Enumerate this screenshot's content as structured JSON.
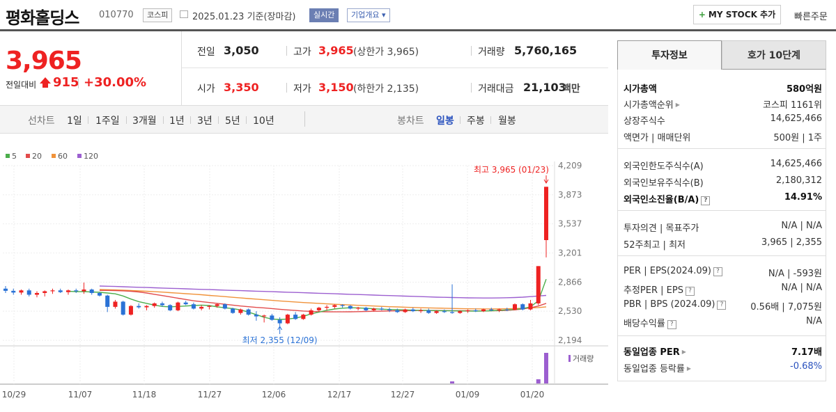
{
  "header": {
    "title": "평화홀딩스",
    "code": "010770",
    "market": "코스피",
    "date": "2025.01.23  기준(장마감)",
    "live": "실시간",
    "company_info": "기업개요 ▾",
    "mystock": "MY STOCK 추가",
    "mystock_plus": "+",
    "quick_order": "빠른주문"
  },
  "price": {
    "current": "3,965",
    "change_label": "전일대비",
    "change": "915",
    "change_pct": "+30.00%"
  },
  "quotes": {
    "prev_label": "전일",
    "prev": "3,050",
    "high_label": "고가",
    "high": "3,965",
    "high_sub": "(상한가 3,965)",
    "volume_label": "거래량",
    "volume": "5,760,165",
    "open_label": "시가",
    "open": "3,350",
    "low_label": "저가",
    "low": "3,150",
    "low_sub": "(하한가 2,135)",
    "amount_label": "거래대금",
    "amount": "21,103",
    "amount_unit": "백만"
  },
  "chart_nav": {
    "line_label": "선차트",
    "line_periods": [
      "1일",
      "1주일",
      "3개월",
      "1년",
      "3년",
      "5년",
      "10년"
    ],
    "candle_label": "봉차트",
    "candle_periods": [
      "일봉",
      "주봉",
      "월봉"
    ],
    "candle_active": "일봉"
  },
  "chart_data": {
    "type": "candlestick",
    "legend": [
      {
        "name": "5",
        "color": "#4cae4c"
      },
      {
        "name": "20",
        "color": "#e24b4b"
      },
      {
        "name": "60",
        "color": "#f0923a"
      },
      {
        "name": "120",
        "color": "#9c5fd0"
      }
    ],
    "y_ticks": [
      "4,209",
      "3,873",
      "3,537",
      "3,201",
      "2,866",
      "2,530",
      "2,194"
    ],
    "ylim": [
      2194,
      4209
    ],
    "x_ticks": [
      "10/29",
      "11/07",
      "11/18",
      "11/27",
      "12/06",
      "12/17",
      "12/27",
      "01/09",
      "01/20"
    ],
    "high_annotation": "최고 3,965 (01/23)",
    "low_annotation": "최저 2,355 (12/09)",
    "volume_label": "거래량",
    "up_color": "#e22",
    "down_color": "#2a72d6",
    "candles": [
      [
        2790,
        2820,
        2740,
        2765
      ],
      [
        2765,
        2790,
        2720,
        2745
      ],
      [
        2745,
        2780,
        2720,
        2770
      ],
      [
        2770,
        2790,
        2700,
        2720
      ],
      [
        2720,
        2760,
        2690,
        2740
      ],
      [
        2740,
        2770,
        2700,
        2760
      ],
      [
        2760,
        2790,
        2730,
        2770
      ],
      [
        2770,
        2790,
        2740,
        2750
      ],
      [
        2750,
        2780,
        2720,
        2770
      ],
      [
        2770,
        2790,
        2740,
        2760
      ],
      [
        2760,
        2860,
        2730,
        2780
      ],
      [
        2780,
        2790,
        2720,
        2740
      ],
      [
        2740,
        2750,
        2700,
        2710
      ],
      [
        2710,
        2720,
        2520,
        2580
      ],
      [
        2580,
        2660,
        2560,
        2640
      ],
      [
        2640,
        2650,
        2480,
        2490
      ],
      [
        2490,
        2600,
        2480,
        2590
      ],
      [
        2590,
        2620,
        2560,
        2575
      ],
      [
        2575,
        2600,
        2540,
        2590
      ],
      [
        2590,
        2630,
        2570,
        2620
      ],
      [
        2620,
        2640,
        2580,
        2600
      ],
      [
        2600,
        2610,
        2530,
        2540
      ],
      [
        2540,
        2640,
        2530,
        2630
      ],
      [
        2630,
        2650,
        2600,
        2610
      ],
      [
        2610,
        2630,
        2550,
        2560
      ],
      [
        2560,
        2600,
        2540,
        2580
      ],
      [
        2580,
        2600,
        2550,
        2590
      ],
      [
        2590,
        2620,
        2570,
        2610
      ],
      [
        2610,
        2620,
        2550,
        2560
      ],
      [
        2560,
        2570,
        2500,
        2510
      ],
      [
        2510,
        2560,
        2490,
        2550
      ],
      [
        2550,
        2560,
        2480,
        2490
      ],
      [
        2490,
        2530,
        2420,
        2470
      ],
      [
        2470,
        2490,
        2400,
        2480
      ],
      [
        2480,
        2500,
        2420,
        2430
      ],
      [
        2430,
        2460,
        2360,
        2390
      ],
      [
        2390,
        2500,
        2380,
        2490
      ],
      [
        2490,
        2520,
        2430,
        2440
      ],
      [
        2440,
        2500,
        2430,
        2490
      ],
      [
        2490,
        2560,
        2480,
        2540
      ],
      [
        2540,
        2580,
        2520,
        2570
      ],
      [
        2570,
        2600,
        2540,
        2580
      ],
      [
        2580,
        2610,
        2560,
        2600
      ],
      [
        2600,
        2610,
        2570,
        2590
      ],
      [
        2590,
        2600,
        2550,
        2560
      ],
      [
        2560,
        2580,
        2540,
        2570
      ],
      [
        2570,
        2580,
        2530,
        2540
      ],
      [
        2540,
        2570,
        2530,
        2560
      ],
      [
        2560,
        2580,
        2540,
        2550
      ],
      [
        2550,
        2570,
        2520,
        2540
      ],
      [
        2540,
        2560,
        2510,
        2520
      ],
      [
        2520,
        2560,
        2510,
        2550
      ],
      [
        2550,
        2570,
        2520,
        2530
      ],
      [
        2530,
        2560,
        2510,
        2540
      ],
      [
        2540,
        2560,
        2500,
        2510
      ],
      [
        2510,
        2540,
        2500,
        2530
      ],
      [
        2530,
        2550,
        2510,
        2520
      ],
      [
        2520,
        2840,
        2500,
        2510
      ],
      [
        2510,
        2540,
        2500,
        2530
      ],
      [
        2530,
        2550,
        2510,
        2540
      ],
      [
        2540,
        2560,
        2520,
        2530
      ],
      [
        2530,
        2560,
        2520,
        2550
      ],
      [
        2550,
        2570,
        2530,
        2540
      ],
      [
        2540,
        2560,
        2520,
        2550
      ],
      [
        2550,
        2570,
        2530,
        2545
      ],
      [
        2545,
        2620,
        2540,
        2610
      ],
      [
        2610,
        2620,
        2540,
        2550
      ],
      [
        2550,
        2660,
        2540,
        2620
      ],
      [
        2620,
        3050,
        2600,
        3050
      ],
      [
        3350,
        3965,
        3150,
        3965
      ]
    ],
    "ma5": [
      2760,
      2755,
      2755,
      2752,
      2748,
      2740,
      2730,
      2705,
      2670,
      2640,
      2620,
      2600,
      2585,
      2580,
      2585,
      2590,
      2595,
      2600,
      2595,
      2580,
      2570,
      2560,
      2545,
      2520,
      2490,
      2460,
      2440,
      2435,
      2440,
      2450,
      2470,
      2500,
      2520,
      2540,
      2555,
      2565,
      2570,
      2568,
      2563,
      2558,
      2553,
      2550,
      2548,
      2545,
      2542,
      2540,
      2538,
      2536,
      2535,
      2534,
      2533,
      2532,
      2531,
      2532,
      2535,
      2540,
      2545,
      2550,
      2560,
      2580,
      2650,
      2900
    ],
    "ma20": [
      2770,
      2770,
      2768,
      2765,
      2760,
      2752,
      2740,
      2725,
      2710,
      2695,
      2680,
      2665,
      2650,
      2640,
      2630,
      2620,
      2610,
      2600,
      2590,
      2582,
      2574,
      2568,
      2560,
      2552,
      2545,
      2538,
      2532,
      2528,
      2525,
      2523,
      2522,
      2522,
      2523,
      2525,
      2527,
      2529,
      2531,
      2533,
      2535,
      2536,
      2537,
      2538,
      2538,
      2538,
      2537,
      2536,
      2535,
      2534,
      2533,
      2533,
      2534,
      2536,
      2540,
      2546,
      2556,
      2570,
      2590,
      2620
    ],
    "ma60": [
      2780,
      2778,
      2775,
      2772,
      2768,
      2764,
      2760,
      2755,
      2750,
      2744,
      2738,
      2732,
      2726,
      2720,
      2712,
      2705,
      2698,
      2690,
      2683,
      2676,
      2669,
      2662,
      2655,
      2648,
      2642,
      2636,
      2630,
      2625,
      2620,
      2615,
      2610,
      2606,
      2602,
      2598,
      2594,
      2590,
      2586,
      2582,
      2579,
      2576,
      2573,
      2570,
      2568,
      2566,
      2564,
      2562,
      2560,
      2558,
      2557,
      2556,
      2556,
      2557,
      2558,
      2560,
      2563,
      2567,
      2572,
      2580
    ],
    "ma120": [
      2820,
      2818,
      2815,
      2812,
      2809,
      2806,
      2803,
      2800,
      2797,
      2794,
      2791,
      2788,
      2785,
      2782,
      2779,
      2776,
      2773,
      2770,
      2767,
      2764,
      2761,
      2758,
      2755,
      2752,
      2749,
      2746,
      2743,
      2740,
      2737,
      2734,
      2731,
      2728,
      2725,
      2722,
      2719,
      2716,
      2713,
      2710,
      2707,
      2704,
      2701,
      2698,
      2695,
      2692,
      2690,
      2688,
      2686,
      2684,
      2683,
      2682,
      2682,
      2683,
      2685,
      2688,
      2692,
      2698,
      2705,
      2712
    ],
    "volume_note": "small volume bars near 12/31, 01/21 and large bar on 01/23"
  },
  "panel": {
    "tabs": [
      "투자정보",
      "호가 10단계"
    ],
    "market_cap_label": "시가총액",
    "market_cap": "580억원",
    "rank_label": "시가총액순위",
    "rank": "코스피 1161위",
    "shares_label": "상장주식수",
    "shares": "14,625,466",
    "par_label": "액면가 | 매매단위",
    "par": "500원 | 1주",
    "foreign_limit_label": "외국인한도주식수(A)",
    "foreign_limit": "14,625,466",
    "foreign_hold_label": "외국인보유주식수(B)",
    "foreign_hold": "2,180,312",
    "foreign_ratio_label": "외국인소진율(B/A)",
    "foreign_ratio": "14.91%",
    "opinion_label": "투자의견 | 목표주가",
    "opinion": "N/A | N/A",
    "wk52_label": "52주최고 | 최저",
    "wk52": "3,965 | 2,355",
    "per_label": "PER | EPS(2024.09)",
    "per": "N/A | -593원",
    "est_per_label": "추정PER | EPS",
    "est_per": "N/A | N/A",
    "pbr_label": "PBR | BPS (2024.09)",
    "pbr": "0.56배 | 7,075원",
    "div_label": "배당수익률",
    "div": "N/A",
    "ind_per_label": "동일업종 PER",
    "ind_per": "7.17배",
    "ind_rate_label": "동일업종 등락률",
    "ind_rate": "-0.68%",
    "q": "?"
  }
}
